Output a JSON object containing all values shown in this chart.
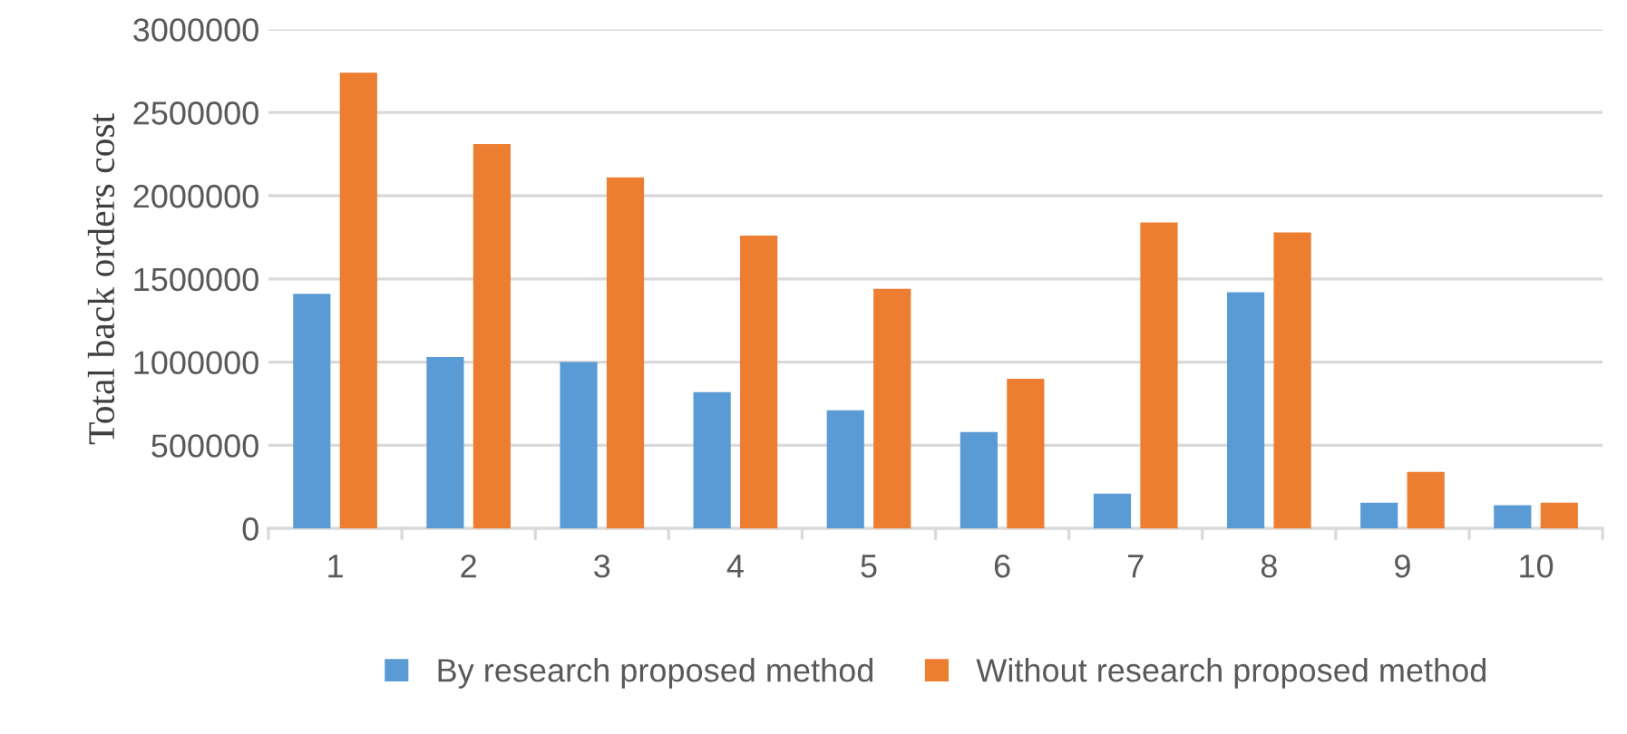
{
  "chart_data": {
    "type": "bar",
    "ylabel": "Total back orders cost",
    "categories": [
      "1",
      "2",
      "3",
      "4",
      "5",
      "6",
      "7",
      "8",
      "9",
      "10"
    ],
    "series": [
      {
        "name": "By research proposed method",
        "color": "#5b9bd5",
        "values": [
          1410000,
          1030000,
          1000000,
          820000,
          710000,
          580000,
          210000,
          1420000,
          155000,
          140000
        ]
      },
      {
        "name": "Without research proposed method",
        "color": "#ed7d31",
        "values": [
          2740000,
          2310000,
          2110000,
          1760000,
          1440000,
          900000,
          1840000,
          1780000,
          340000,
          155000
        ]
      }
    ],
    "ylim": [
      0,
      3000000
    ],
    "yticks": [
      0,
      500000,
      1000000,
      1500000,
      2000000,
      2500000,
      3000000
    ],
    "grid": "y",
    "legend": "bottom"
  }
}
